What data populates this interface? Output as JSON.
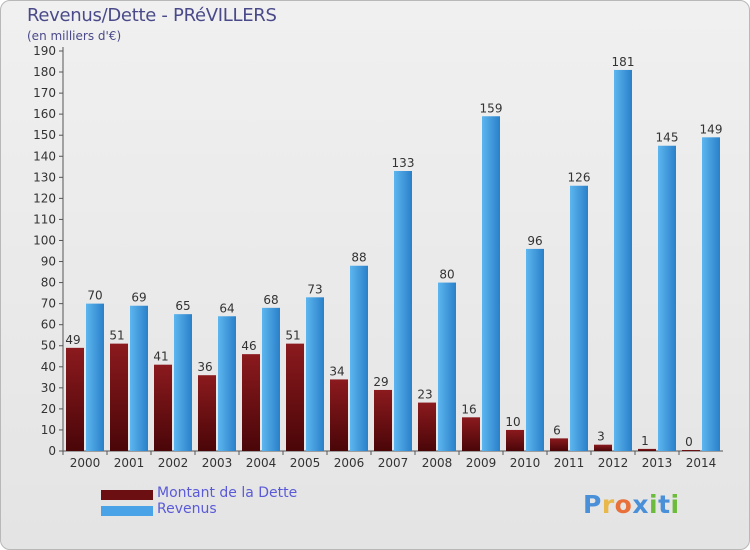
{
  "header": {
    "title": "Revenus/Dette - PRéVILLERS",
    "subtitle": "(en milliers d'€)"
  },
  "legend": {
    "items": [
      {
        "label": "Montant de la Dette",
        "color": "#6b0f12"
      },
      {
        "label": "Revenus",
        "color": "#4aa3e6"
      }
    ]
  },
  "logo": {
    "text": "Proxiti",
    "colors": [
      "#4a90d9",
      "#e8b84a",
      "#e8703a",
      "#4a90d9",
      "#6dbb3c",
      "#4a90d9",
      "#6dbb3c"
    ]
  },
  "colors": {
    "dette_top": "#8b1a1e",
    "dette_bottom": "#4a0608",
    "revenus_top": "#5cb6ee",
    "revenus_bottom": "#2a80c8"
  },
  "chart_data": {
    "type": "bar",
    "title": "Revenus/Dette - PRéVILLERS",
    "subtitle": "(en milliers d'€)",
    "xlabel": "",
    "ylabel": "",
    "ylim": [
      0,
      190
    ],
    "ytick_step": 10,
    "grid": false,
    "legend_position": "bottom-left",
    "categories": [
      "2000",
      "2001",
      "2002",
      "2003",
      "2004",
      "2005",
      "2006",
      "2007",
      "2008",
      "2009",
      "2010",
      "2011",
      "2012",
      "2013",
      "2014"
    ],
    "series": [
      {
        "name": "Montant de la Dette",
        "values": [
          49,
          51,
          41,
          36,
          46,
          51,
          34,
          29,
          23,
          16,
          10,
          6,
          3,
          1,
          0
        ]
      },
      {
        "name": "Revenus",
        "values": [
          70,
          69,
          65,
          64,
          68,
          73,
          88,
          133,
          80,
          159,
          96,
          126,
          181,
          145,
          149
        ]
      }
    ]
  }
}
